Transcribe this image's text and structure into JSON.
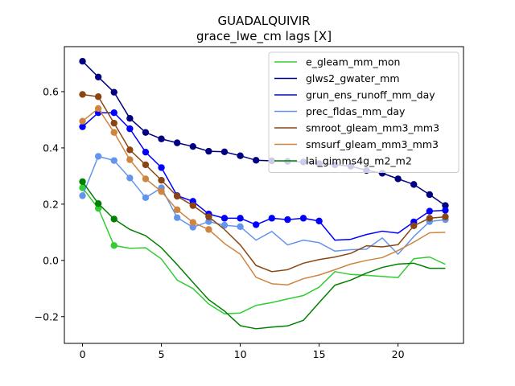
{
  "chart_data": {
    "type": "line",
    "title": "GUADALQUIVIR",
    "subtitle": "grace_lwe_cm lags [X]",
    "xlabel": "",
    "ylabel": "",
    "xlim": [
      -1.15,
      24.15
    ],
    "ylim": [
      -0.295,
      0.76
    ],
    "xticks": [
      0,
      5,
      10,
      15,
      20
    ],
    "yticks": [
      -0.2,
      0.0,
      0.2,
      0.4,
      0.6
    ],
    "ytick_labels": [
      "−0.2",
      "0.0",
      "0.2",
      "0.4",
      "0.6"
    ],
    "legend_position": "upper-right",
    "grid": false,
    "x": [
      0,
      1,
      2,
      3,
      4,
      5,
      6,
      7,
      8,
      9,
      10,
      11,
      12,
      13,
      14,
      15,
      16,
      17,
      18,
      19,
      20,
      21,
      22,
      23
    ],
    "series": [
      {
        "name": "e_gleam_mm_mon",
        "color": "#32cd32",
        "values": [
          0.258,
          0.185,
          0.053,
          0.043,
          0.045,
          0.005,
          -0.07,
          -0.1,
          -0.155,
          -0.19,
          -0.187,
          -0.16,
          -0.15,
          -0.137,
          -0.125,
          -0.095,
          -0.04,
          -0.05,
          -0.053,
          -0.057,
          -0.061,
          0.006,
          0.012,
          -0.014
        ],
        "markers": [
          0,
          1,
          2
        ]
      },
      {
        "name": "glws2_gwater_mm",
        "color": "#000080",
        "values": [
          0.708,
          0.652,
          0.598,
          0.505,
          0.455,
          0.432,
          0.418,
          0.405,
          0.388,
          0.386,
          0.372,
          0.356,
          0.354,
          0.352,
          0.35,
          0.344,
          0.34,
          0.335,
          0.32,
          0.31,
          0.29,
          0.27,
          0.234,
          0.195
        ],
        "markers": [
          0,
          1,
          2,
          3,
          4,
          5,
          6,
          7,
          8,
          9,
          10,
          11,
          12,
          13,
          14,
          15,
          16,
          17,
          18,
          19,
          20,
          21,
          22,
          23
        ]
      },
      {
        "name": "grun_ens_runoff_mm_day",
        "color": "#0000ff",
        "values": [
          0.475,
          0.525,
          0.525,
          0.468,
          0.385,
          0.33,
          0.23,
          0.21,
          0.165,
          0.15,
          0.15,
          0.127,
          0.15,
          0.145,
          0.15,
          0.14,
          0.072,
          0.075,
          0.092,
          0.104,
          0.097,
          0.137,
          0.175,
          0.178
        ],
        "markers": [
          0,
          1,
          2,
          3,
          4,
          5,
          6,
          7,
          8,
          9,
          10,
          11,
          12,
          13,
          14,
          15,
          21,
          22,
          23
        ]
      },
      {
        "name": "prec_fldas_mm_day",
        "color": "#6495ed",
        "values": [
          0.23,
          0.37,
          0.355,
          0.293,
          0.223,
          0.258,
          0.152,
          0.118,
          0.138,
          0.125,
          0.12,
          0.072,
          0.103,
          0.055,
          0.072,
          0.063,
          0.033,
          0.038,
          0.04,
          0.08,
          0.022,
          0.085,
          0.138,
          0.145
        ],
        "markers": [
          0,
          1,
          2,
          3,
          4,
          5,
          6,
          7,
          8,
          9,
          10,
          22,
          23
        ]
      },
      {
        "name": "smroot_gleam_mm3_mm3",
        "color": "#8b4513",
        "values": [
          0.59,
          0.582,
          0.488,
          0.393,
          0.34,
          0.285,
          0.228,
          0.195,
          0.155,
          0.11,
          0.055,
          -0.018,
          -0.04,
          -0.033,
          -0.01,
          0.003,
          0.012,
          0.025,
          0.052,
          0.048,
          0.056,
          0.123,
          0.15,
          0.155
        ],
        "markers": [
          0,
          1,
          2,
          3,
          4,
          5,
          6,
          7,
          8,
          21,
          22,
          23
        ]
      },
      {
        "name": "smsurf_gleam_mm3_mm3",
        "color": "#cd853f",
        "values": [
          0.495,
          0.54,
          0.455,
          0.358,
          0.29,
          0.245,
          0.18,
          0.135,
          0.11,
          0.06,
          0.022,
          -0.06,
          -0.083,
          -0.087,
          -0.065,
          -0.052,
          -0.033,
          -0.013,
          0.0,
          0.01,
          0.035,
          0.065,
          0.098,
          0.1
        ],
        "markers": [
          0,
          1,
          2,
          3,
          4,
          5,
          6,
          7,
          8
        ]
      },
      {
        "name": "lai_gimms4g_m2_m2",
        "color": "#008000",
        "values": [
          0.28,
          0.202,
          0.147,
          0.11,
          0.088,
          0.045,
          -0.015,
          -0.078,
          -0.14,
          -0.18,
          -0.232,
          -0.243,
          -0.237,
          -0.233,
          -0.213,
          -0.15,
          -0.088,
          -0.07,
          -0.045,
          -0.025,
          -0.013,
          -0.01,
          -0.028,
          -0.028
        ],
        "markers": [
          0,
          1,
          2
        ]
      }
    ]
  }
}
